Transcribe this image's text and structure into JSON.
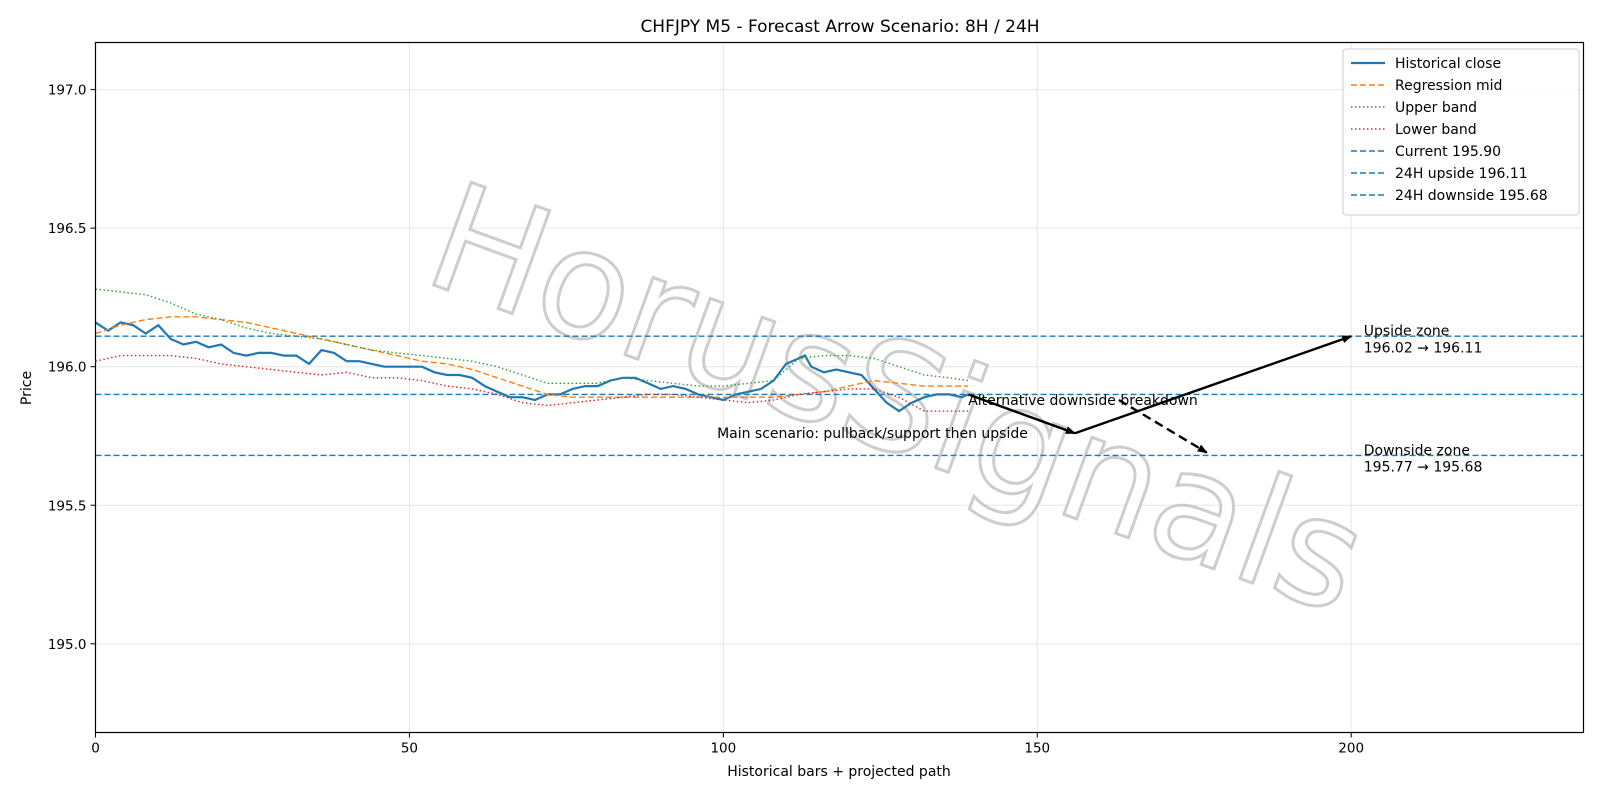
{
  "chart_data": {
    "type": "line",
    "title": "CHFJPY M5 - Forecast Arrow Scenario: 8H / 24H",
    "xlabel": "Historical bars + projected path",
    "ylabel": "Price",
    "xlim": [
      0,
      237
    ],
    "ylim": [
      194.68,
      197.17
    ],
    "xticks": [
      0,
      50,
      100,
      150,
      200
    ],
    "yticks": [
      195.0,
      195.5,
      196.0,
      196.5,
      197.0
    ],
    "ytick_labels": [
      "195.0",
      "195.5",
      "196.0",
      "196.5",
      "197.0"
    ],
    "grid": true,
    "legend_position": "top-right",
    "watermark": "HorusSignals",
    "series": [
      {
        "name": "Historical close",
        "color": "#1f77b4",
        "style": "solid",
        "x": [
          0,
          2,
          4,
          6,
          8,
          10,
          12,
          14,
          16,
          18,
          20,
          22,
          24,
          26,
          28,
          30,
          32,
          34,
          36,
          38,
          40,
          42,
          44,
          46,
          48,
          50,
          52,
          54,
          56,
          58,
          60,
          62,
          64,
          66,
          68,
          70,
          72,
          74,
          76,
          78,
          80,
          82,
          84,
          86,
          88,
          90,
          92,
          94,
          96,
          98,
          100,
          102,
          104,
          106,
          108,
          110,
          112,
          113,
          114,
          116,
          118,
          120,
          122,
          124,
          126,
          128,
          130,
          132,
          134,
          136,
          138,
          139
        ],
        "y": [
          196.16,
          196.13,
          196.16,
          196.15,
          196.12,
          196.15,
          196.1,
          196.08,
          196.09,
          196.07,
          196.08,
          196.05,
          196.04,
          196.05,
          196.05,
          196.04,
          196.04,
          196.01,
          196.06,
          196.05,
          196.02,
          196.02,
          196.01,
          196.0,
          196.0,
          196.0,
          196.0,
          195.98,
          195.97,
          195.97,
          195.96,
          195.93,
          195.91,
          195.89,
          195.89,
          195.88,
          195.9,
          195.9,
          195.92,
          195.93,
          195.93,
          195.95,
          195.96,
          195.96,
          195.94,
          195.92,
          195.93,
          195.92,
          195.9,
          195.89,
          195.88,
          195.9,
          195.91,
          195.92,
          195.95,
          196.01,
          196.03,
          196.04,
          196.0,
          195.98,
          195.99,
          195.98,
          195.97,
          195.92,
          195.87,
          195.84,
          195.87,
          195.89,
          195.9,
          195.9,
          195.89,
          195.9
        ]
      },
      {
        "name": "Regression mid",
        "color": "#ff7f0e",
        "style": "dashed",
        "x": [
          0,
          4,
          8,
          12,
          16,
          20,
          24,
          28,
          32,
          36,
          40,
          44,
          48,
          52,
          56,
          60,
          64,
          68,
          72,
          76,
          80,
          84,
          88,
          92,
          96,
          100,
          104,
          108,
          112,
          116,
          120,
          124,
          128,
          132,
          136,
          139
        ],
        "y": [
          196.12,
          196.15,
          196.17,
          196.18,
          196.18,
          196.17,
          196.16,
          196.14,
          196.12,
          196.1,
          196.08,
          196.06,
          196.04,
          196.02,
          196.01,
          195.99,
          195.96,
          195.93,
          195.9,
          195.89,
          195.89,
          195.89,
          195.89,
          195.89,
          195.89,
          195.89,
          195.89,
          195.89,
          195.9,
          195.91,
          195.93,
          195.95,
          195.94,
          195.93,
          195.93,
          195.93
        ]
      },
      {
        "name": "Upper band",
        "color": "#2ca02c",
        "style": "dotted",
        "x": [
          0,
          4,
          8,
          12,
          16,
          20,
          24,
          28,
          32,
          36,
          40,
          44,
          48,
          52,
          56,
          60,
          64,
          68,
          72,
          76,
          80,
          84,
          88,
          92,
          96,
          100,
          104,
          108,
          112,
          116,
          120,
          124,
          128,
          132,
          136,
          139
        ],
        "y": [
          196.28,
          196.27,
          196.26,
          196.23,
          196.19,
          196.17,
          196.14,
          196.12,
          196.11,
          196.1,
          196.08,
          196.06,
          196.05,
          196.04,
          196.03,
          196.02,
          196.0,
          195.97,
          195.94,
          195.94,
          195.94,
          195.96,
          195.95,
          195.94,
          195.93,
          195.93,
          195.94,
          195.95,
          196.03,
          196.04,
          196.04,
          196.03,
          196.0,
          195.97,
          195.96,
          195.95
        ]
      },
      {
        "name": "Lower band",
        "color": "#d62728",
        "style": "dotted",
        "x": [
          0,
          4,
          8,
          12,
          16,
          20,
          24,
          28,
          32,
          36,
          40,
          44,
          48,
          52,
          56,
          60,
          64,
          68,
          72,
          76,
          80,
          84,
          88,
          92,
          96,
          100,
          104,
          108,
          112,
          116,
          120,
          124,
          128,
          132,
          136,
          139
        ],
        "y": [
          196.02,
          196.04,
          196.04,
          196.04,
          196.03,
          196.01,
          196.0,
          195.99,
          195.98,
          195.97,
          195.98,
          195.96,
          195.96,
          195.95,
          195.93,
          195.92,
          195.9,
          195.87,
          195.86,
          195.87,
          195.88,
          195.89,
          195.9,
          195.9,
          195.89,
          195.88,
          195.87,
          195.88,
          195.9,
          195.91,
          195.92,
          195.92,
          195.89,
          195.84,
          195.84,
          195.84
        ]
      }
    ],
    "hlines": [
      {
        "name": "Current 195.90",
        "y": 195.9,
        "color": "#1f77b4",
        "style": "dashed"
      },
      {
        "name": "24H upside 196.11",
        "y": 196.11,
        "color": "#1f77b4",
        "style": "dashed"
      },
      {
        "name": "24H downside 195.68",
        "y": 195.68,
        "color": "#1f77b4",
        "style": "dashed"
      }
    ],
    "arrows": [
      {
        "from": [
          139,
          195.9
        ],
        "to": [
          156,
          195.76
        ],
        "style": "solid"
      },
      {
        "from": [
          156,
          195.76
        ],
        "to": [
          200,
          196.11
        ],
        "style": "solid"
      },
      {
        "from": [
          163,
          195.88
        ],
        "to": [
          177,
          195.69
        ],
        "style": "dashed"
      }
    ],
    "annotations": [
      {
        "text": "Alternative downside breakdown",
        "x": 139,
        "y": 195.88
      },
      {
        "text": "Main scenario: pullback/support then upside",
        "x": 99,
        "y": 195.76
      },
      {
        "text": "Upside zone",
        "x": 202,
        "y": 196.13
      },
      {
        "text": "196.02 → 196.11",
        "x": 202,
        "y": 196.07
      },
      {
        "text": "Downside zone",
        "x": 202,
        "y": 195.7
      },
      {
        "text": "195.77 → 195.68",
        "x": 202,
        "y": 195.64
      }
    ],
    "legend": [
      "Historical close",
      "Regression mid",
      "Upper band",
      "Lower band",
      "Current 195.90",
      "24H upside 196.11",
      "24H downside 195.68"
    ]
  }
}
